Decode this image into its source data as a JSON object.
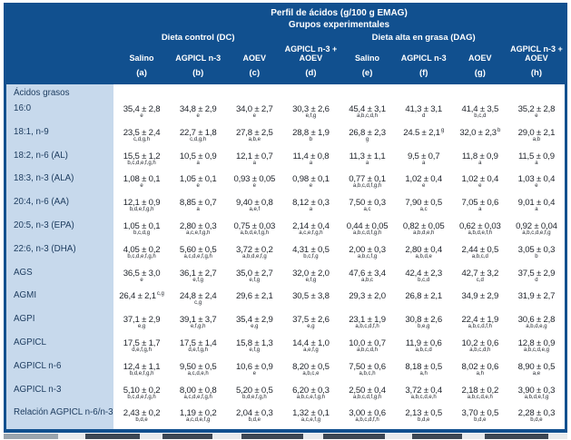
{
  "colors": {
    "header_blue": "#11508f",
    "label_bg": "#c7d9ec",
    "label_text": "#1c3b5e",
    "value_text": "#23272e"
  },
  "header": {
    "title": "Perfil de ácidos (g/100 g EMAG)",
    "subtitle": "Grupos experimentales",
    "groups": [
      {
        "label": "Dieta control (DC)"
      },
      {
        "label": "Dieta alta en grasa (DAG)"
      }
    ],
    "columns": [
      {
        "label": "Salino",
        "letter": "(a)"
      },
      {
        "label": "AGPICL n-3",
        "letter": "(b)"
      },
      {
        "label": "AOEV",
        "letter": "(c)"
      },
      {
        "label": "AGPICL n-3 + AOEV",
        "letter": "(d)"
      },
      {
        "label": "Salino",
        "letter": "(e)"
      },
      {
        "label": "AGPICL n-3",
        "letter": "(f)"
      },
      {
        "label": "AOEV",
        "letter": "(g)"
      },
      {
        "label": "AGPICL n-3 + AOEV",
        "letter": "(h)"
      }
    ]
  },
  "section_label": "Ácidos grasos",
  "rows": [
    {
      "label": "16:0",
      "cells": [
        {
          "v": "35,4 ± 2,8",
          "sub": "e"
        },
        {
          "v": "34,8 ± 2,9",
          "sub": "e"
        },
        {
          "v": "34,0 ± 2,7",
          "sub": "e"
        },
        {
          "v": "30,3 ± 2,6",
          "sub": "e,f,g"
        },
        {
          "v": "45,4 ± 3,1",
          "sub": "a,b,c,d,h"
        },
        {
          "v": "41,3 ± 3,1",
          "sub": "d"
        },
        {
          "v": "41,4 ± 3,5",
          "sub": "b,c,d"
        },
        {
          "v": "35,2 ± 2,8",
          "sub": "e"
        }
      ]
    },
    {
      "label": "18:1, n-9",
      "cells": [
        {
          "v": "23,5 ± 2,4",
          "sub": "c,d,g,h"
        },
        {
          "v": "22,7 ± 1,8",
          "sub": "c,d,g,h"
        },
        {
          "v": "27,8 ± 2,5",
          "sub": "a,b,e"
        },
        {
          "v": "28,8 ± 1,9",
          "sub": "b"
        },
        {
          "v": "26,8 ± 2,3",
          "sub": "g"
        },
        {
          "v": "24.5 ± 2,1",
          "sup": "g"
        },
        {
          "v": "32,0 ± 2,3",
          "sup": "b"
        },
        {
          "v": "29,0 ± 2,1",
          "sub": "a,b"
        }
      ]
    },
    {
      "label": "18:2, n-6 (AL)",
      "cells": [
        {
          "v": "15,5 ± 1,2",
          "sub": "b,c,d,e,f,g,h"
        },
        {
          "v": "10,5 ± 0,9",
          "sub": "a"
        },
        {
          "v": "12,1 ± 0,7",
          "sub": "a"
        },
        {
          "v": "11,4 ± 0,8",
          "sub": "a"
        },
        {
          "v": "11,3 ± 1,1",
          "sub": "a"
        },
        {
          "v": "9,5 ± 0,7",
          "sub": "a"
        },
        {
          "v": "11,8 ± 0,9",
          "sub": "a"
        },
        {
          "v": "11,5 ± 0,9",
          "sub": "a"
        }
      ]
    },
    {
      "label": "18:3, n-3 (ALA)",
      "cells": [
        {
          "v": "1,08 ± 0,1",
          "sub": "e"
        },
        {
          "v": "1,05 ± 0,1",
          "sub": "e"
        },
        {
          "v": "0,93 ± 0,05",
          "sub": "e"
        },
        {
          "v": "0,98 ± 0,1",
          "sub": "e"
        },
        {
          "v": "0,77 ± 0,1",
          "sub": "a,b,c,d,f,g,h"
        },
        {
          "v": "1,02 ± 0,4",
          "sub": "e"
        },
        {
          "v": "1,02 ± 0,4",
          "sub": "e"
        },
        {
          "v": "1,03 ± 0,4",
          "sub": "e"
        }
      ]
    },
    {
      "label": "20:4, n-6 (AA)",
      "cells": [
        {
          "v": "12,1 ± 0,9",
          "sub": "b,d,e,f,g,h"
        },
        {
          "v": "8,85 ± 0,7",
          "sub": "a"
        },
        {
          "v": "9,40 ± 0,8",
          "sub": "a,e,f"
        },
        {
          "v": "8,12 ± 0,3",
          "sub": "a"
        },
        {
          "v": "7,50 ± 0,3",
          "sub": "a,c"
        },
        {
          "v": "7,90 ± 0,5",
          "sub": "a,c"
        },
        {
          "v": "7,05 ± 0,6",
          "sub": "a"
        },
        {
          "v": "9,01 ± 0,4",
          "sub": "a"
        }
      ]
    },
    {
      "label": "20:5, n-3 (EPA)",
      "cells": [
        {
          "v": "1,05 ± 0,1",
          "sub": "b,c,d,g"
        },
        {
          "v": "2,80 ± 0,3",
          "sub": "a,c,e,f,g,h"
        },
        {
          "v": "0,75 ± 0,03",
          "sub": "a,b,d,e,f,g,h"
        },
        {
          "v": "2,14 ± 0,4",
          "sub": "a,c,e,f,g,h"
        },
        {
          "v": "0,44 ± 0,05",
          "sub": "a,b,c,d,f,g,h"
        },
        {
          "v": "0,82 ± 0,05",
          "sub": "a,b,d,e,h"
        },
        {
          "v": "0,62 ± 0,03",
          "sub": "a,b,d,e,f,h"
        },
        {
          "v": "0,92 ± 0,04",
          "sub": "a,b,c,d,e,f,g"
        }
      ]
    },
    {
      "label": "22:6, n-3 (DHA)",
      "cells": [
        {
          "v": "4,05 ± 0,2",
          "sub": "b,c,d,e,f,g,h"
        },
        {
          "v": "5,60 ± 0,5",
          "sub": "a,c,d,e,f,g,h"
        },
        {
          "v": "3,72 ± 0,2",
          "sub": "a,b,d,e,f,g"
        },
        {
          "v": "4,31 ± 0,5",
          "sub": "b,c,f,g"
        },
        {
          "v": "2,00 ± 0,3",
          "sub": "a,b,c,f,g"
        },
        {
          "v": "2,80 ± 0,4",
          "sub": "a,b,d,e"
        },
        {
          "v": "2,44 ± 0,5",
          "sub": "a,b,c,d"
        },
        {
          "v": "3,05 ± 0,3",
          "sub": "b"
        }
      ]
    },
    {
      "label": "AGS",
      "cells": [
        {
          "v": "36,5 ± 3,0",
          "sub": "e"
        },
        {
          "v": "36,1 ± 2,7",
          "sub": "e,f,g"
        },
        {
          "v": "35,0 ± 2,7",
          "sub": "e,f,g"
        },
        {
          "v": "32,0 ± 2,0",
          "sub": "e,f,g"
        },
        {
          "v": "47,6 ± 3,4",
          "sub": "a,b,c"
        },
        {
          "v": "42,4 ± 2,3",
          "sub": "b,c,d"
        },
        {
          "v": "42,7 ± 3,2",
          "sub": "c,d"
        },
        {
          "v": "37,5 ± 2,9",
          "sub": "d"
        }
      ]
    },
    {
      "label": "AGMI",
      "cells": [
        {
          "v": "26,4 ± 2,1",
          "sup": "c,g"
        },
        {
          "v": "24,8 ± 2,4",
          "sub": "c,g"
        },
        {
          "v": "29,6 ± 2,1"
        },
        {
          "v": "30,5 ± 3,8"
        },
        {
          "v": "29,3 ± 2,0"
        },
        {
          "v": "26,8 ± 2,1"
        },
        {
          "v": "34,9 ± 2,9"
        },
        {
          "v": "31,9 ± 2,7"
        }
      ]
    },
    {
      "label": "AGPI",
      "cells": [
        {
          "v": "37,1 ± 2,9",
          "sub": "e,g"
        },
        {
          "v": "39,1 ± 3,7",
          "sub": "e,f,g,h"
        },
        {
          "v": "35,4 ± 2,9",
          "sub": "e,g"
        },
        {
          "v": "37,5 ± 2,6",
          "sub": "e,g"
        },
        {
          "v": "23,1 ± 1,9",
          "sub": "a,b,c,d,f,h"
        },
        {
          "v": "30,8 ± 2,6",
          "sub": "b,e,g"
        },
        {
          "v": "22,4 ± 1,9",
          "sub": "a,b,c,d,f,h"
        },
        {
          "v": "30,6 ± 2,8",
          "sub": "a,b,d,e,g"
        }
      ]
    },
    {
      "label": "AGPICL",
      "cells": [
        {
          "v": "17,5 ± 1,7",
          "sub": "d,e,f,g,h"
        },
        {
          "v": "17,5 ± 1,4",
          "sub": "d,e,f,g,h"
        },
        {
          "v": "15,8 ± 1,3",
          "sub": "e,f,g"
        },
        {
          "v": "14,4 ± 1,0",
          "sub": "a,e,f,g"
        },
        {
          "v": "10,0 ± 0,7",
          "sub": "a,b,c,d,h"
        },
        {
          "v": "11,9 ± 0,6",
          "sub": "a,b,c,d"
        },
        {
          "v": "10,2 ± 0,6",
          "sub": "a,b,c,d,h"
        },
        {
          "v": "12,8 ± 0,9",
          "sub": "a,b,c,d,e,g"
        }
      ]
    },
    {
      "label": "AGPICL n-6",
      "cells": [
        {
          "v": "12,4 ± 1,1",
          "sub": "b,d,e,f,g,h"
        },
        {
          "v": "9,50 ± 0,5",
          "sub": "a,c,d,e,h"
        },
        {
          "v": "10,6 ± 0,9",
          "sub": "e"
        },
        {
          "v": "8,20 ± 0,5",
          "sub": "a,b,c,e"
        },
        {
          "v": "7,50 ± 0,6",
          "sub": "a,b,c,h"
        },
        {
          "v": "8,18 ± 0,5",
          "sub": "a,h"
        },
        {
          "v": "8,02 ± 0,6",
          "sub": "a,h"
        },
        {
          "v": "8,90 ± 0,5",
          "sub": "a,e"
        }
      ]
    },
    {
      "label": "AGPICL n-3",
      "cells": [
        {
          "v": "5,10 ± 0,2",
          "sub": "b,c,d,e,f,g,h"
        },
        {
          "v": "8,00 ± 0,8",
          "sub": "a,c,d,e,f,g,h"
        },
        {
          "v": "5,20 ± 0,5",
          "sub": "b,d,e,f,g,h"
        },
        {
          "v": "6,20 ± 0,3",
          "sub": "a,b,c,e,f,g,h"
        },
        {
          "v": "2,50 ± 0,4",
          "sub": "a,b,c,d,f,g,h"
        },
        {
          "v": "3,72 ± 0,4",
          "sub": "a,b,c,d,e,h"
        },
        {
          "v": "2,18 ± 0,2",
          "sub": "a,b,c,d,e,h"
        },
        {
          "v": "3,90 ± 0,3",
          "sub": "a,b,d,e,f,g"
        }
      ]
    },
    {
      "label": "Relación AGPICL n-6/n-3",
      "cells": [
        {
          "v": "2,43 ± 0,2",
          "sub": "b,d,e"
        },
        {
          "v": "1,19 ± 0,2",
          "sub": "a,c,d,e,f,g"
        },
        {
          "v": "2,04 ± 0,3",
          "sub": "b,d,e"
        },
        {
          "v": "1,32 ± 0,1",
          "sub": "a,c,e,f,g"
        },
        {
          "v": "3,00 ± 0,6",
          "sub": "a,b,c,d,f,h"
        },
        {
          "v": "2,13 ± 0,5",
          "sub": "b,d,e"
        },
        {
          "v": "3,70 ± 0,5",
          "sub": "b,d,e"
        },
        {
          "v": "2,28 ± 0,3",
          "sub": "b,d,e"
        }
      ]
    }
  ]
}
